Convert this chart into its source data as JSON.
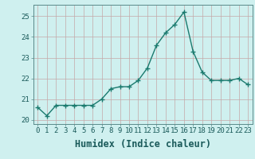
{
  "x": [
    0,
    1,
    2,
    3,
    4,
    5,
    6,
    7,
    8,
    9,
    10,
    11,
    12,
    13,
    14,
    15,
    16,
    17,
    18,
    19,
    20,
    21,
    22,
    23
  ],
  "y": [
    20.6,
    20.2,
    20.7,
    20.7,
    20.7,
    20.7,
    20.7,
    21.0,
    21.5,
    21.6,
    21.6,
    21.9,
    22.5,
    23.6,
    24.2,
    24.6,
    25.2,
    23.3,
    22.3,
    21.9,
    21.9,
    21.9,
    22.0,
    21.7
  ],
  "line_color": "#1a7a6e",
  "marker": "+",
  "marker_size": 4,
  "bg_color": "#cff0ef",
  "grid_color": "#c4a8a8",
  "xlabel": "Humidex (Indice chaleur)",
  "xlim": [
    -0.5,
    23.5
  ],
  "ylim": [
    19.8,
    25.55
  ],
  "yticks": [
    20,
    21,
    22,
    23,
    24,
    25
  ],
  "xticks": [
    0,
    1,
    2,
    3,
    4,
    5,
    6,
    7,
    8,
    9,
    10,
    11,
    12,
    13,
    14,
    15,
    16,
    17,
    18,
    19,
    20,
    21,
    22,
    23
  ],
  "tick_fontsize": 6.5,
  "xlabel_fontsize": 8.5,
  "line_width": 1.0
}
